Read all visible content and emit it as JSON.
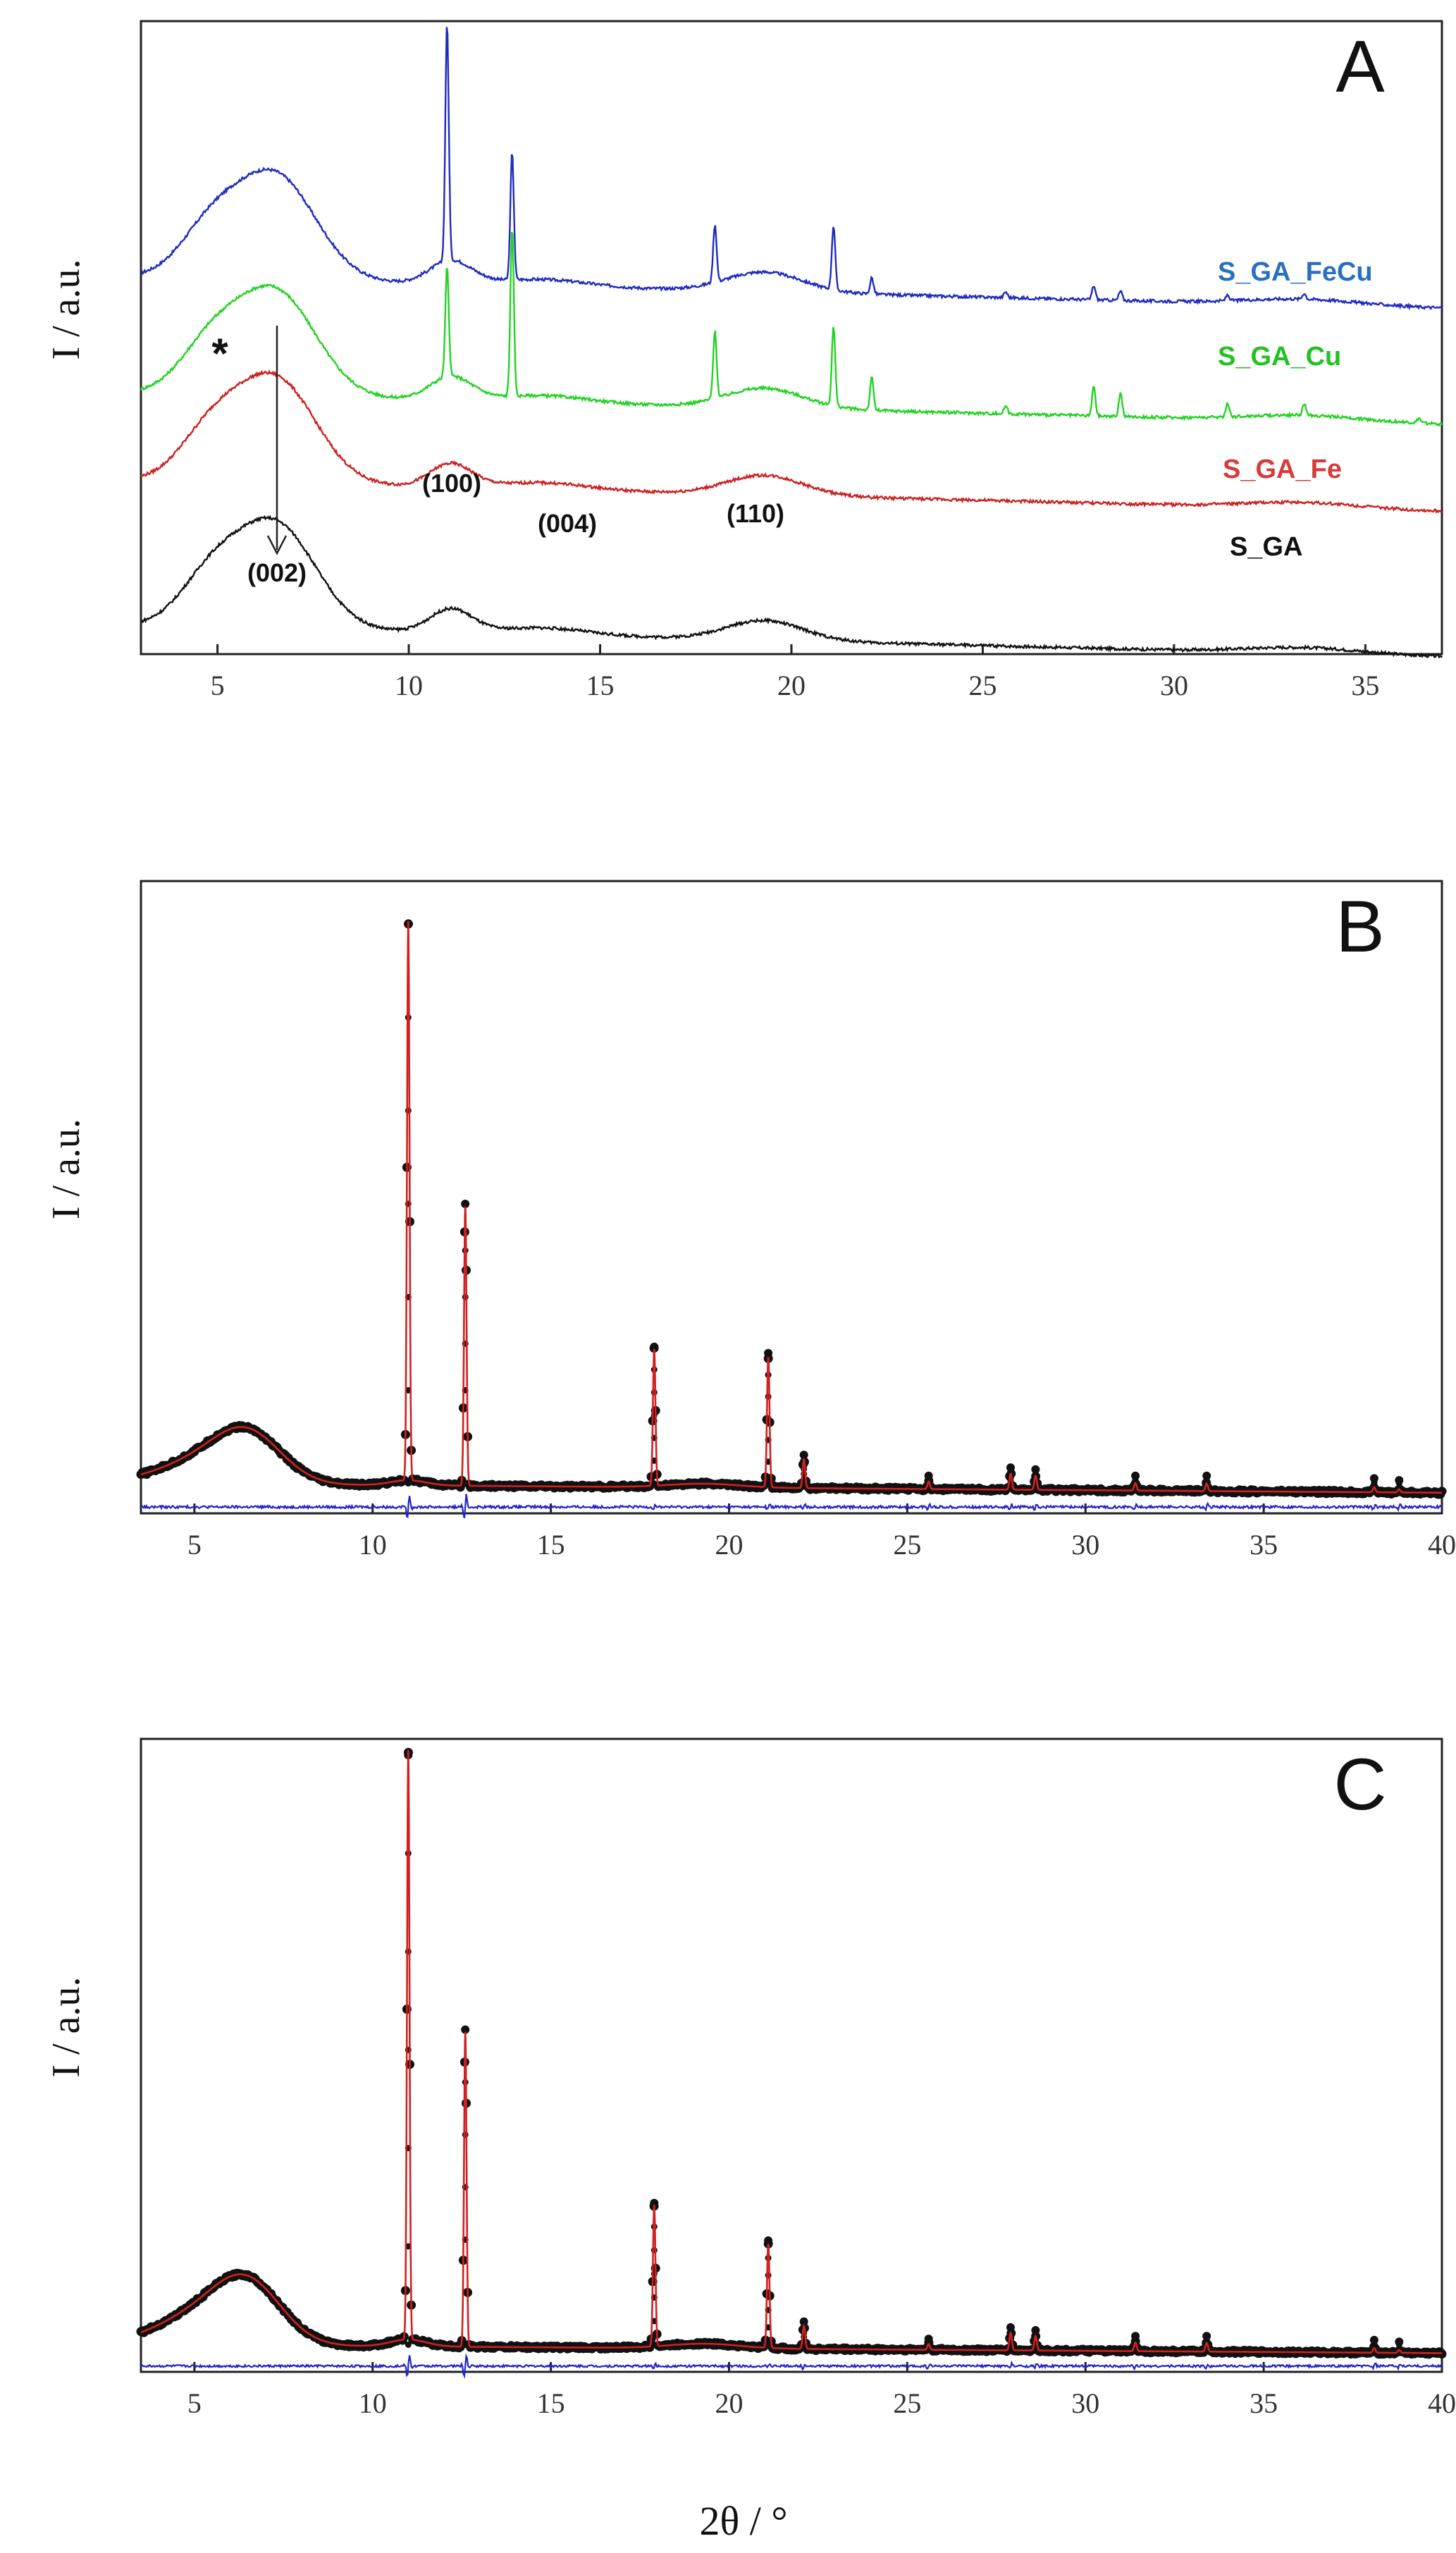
{
  "figure": {
    "xlabel": "2θ / °"
  },
  "chart_data": [
    {
      "type": "line",
      "panel_letter": "A",
      "ylabel": "I / a.u.",
      "xlim": [
        3,
        37
      ],
      "x_ticks": [
        5,
        10,
        15,
        20,
        25,
        30,
        35
      ],
      "grid": false,
      "legend": "inline labels at right",
      "series": [
        {
          "name": "S_GA_FeCu",
          "color": "#1f2bbf",
          "label_color": "#2a6fbf",
          "offset": 3.0,
          "broad": [
            [
              4.8,
              0.38,
              0.8
            ],
            [
              6.5,
              0.9,
              1.05
            ],
            [
              11.1,
              0.2,
              0.55
            ],
            [
              13.5,
              0.06,
              1.2
            ],
            [
              19.3,
              0.17,
              1.0
            ],
            [
              33.4,
              0.05,
              1.5
            ]
          ],
          "sharp": [
            [
              11.0,
              2.05
            ],
            [
              12.7,
              1.1
            ],
            [
              18.0,
              0.5
            ],
            [
              21.1,
              0.55
            ],
            [
              22.1,
              0.14
            ],
            [
              25.6,
              0.05
            ],
            [
              27.9,
              0.12
            ],
            [
              28.6,
              0.08
            ],
            [
              31.4,
              0.05
            ],
            [
              33.4,
              0.05
            ]
          ]
        },
        {
          "name": "S_GA_Cu",
          "color": "#22d322",
          "label_color": "#22c222",
          "offset": 2.0,
          "broad": [
            [
              4.8,
              0.38,
              0.8
            ],
            [
              6.5,
              0.9,
              1.05
            ],
            [
              11.1,
              0.2,
              0.55
            ],
            [
              13.5,
              0.06,
              1.2
            ],
            [
              19.3,
              0.17,
              1.0
            ],
            [
              33.4,
              0.05,
              1.5
            ]
          ],
          "sharp": [
            [
              11.0,
              0.95
            ],
            [
              12.7,
              1.45
            ],
            [
              18.0,
              0.58
            ],
            [
              21.1,
              0.68
            ],
            [
              22.1,
              0.28
            ],
            [
              25.6,
              0.07
            ],
            [
              27.9,
              0.25
            ],
            [
              28.6,
              0.2
            ],
            [
              31.4,
              0.12
            ],
            [
              33.4,
              0.1
            ],
            [
              36.4,
              0.04
            ]
          ]
        },
        {
          "name": "S_GA_Fe",
          "color": "#cc2222",
          "label_color": "#d83a3a",
          "offset": 1.25,
          "broad": [
            [
              4.8,
              0.38,
              0.8
            ],
            [
              6.5,
              0.9,
              1.05
            ],
            [
              11.1,
              0.2,
              0.55
            ],
            [
              13.5,
              0.06,
              1.2
            ],
            [
              19.3,
              0.17,
              1.0
            ],
            [
              33.4,
              0.05,
              1.5
            ]
          ],
          "sharp": []
        },
        {
          "name": "S_GA",
          "color": "#111111",
          "label_color": "#111111",
          "offset": 0.0,
          "broad": [
            [
              4.8,
              0.38,
              0.8
            ],
            [
              6.5,
              0.9,
              1.05
            ],
            [
              11.1,
              0.2,
              0.55
            ],
            [
              13.5,
              0.06,
              1.2
            ],
            [
              19.3,
              0.17,
              1.0
            ],
            [
              33.4,
              0.05,
              1.5
            ]
          ],
          "sharp": []
        }
      ],
      "annotations": [
        {
          "text": "*",
          "x": 5.0
        },
        {
          "text": "(002)",
          "x": 6.5
        },
        {
          "text": "(100)",
          "x": 11.2
        },
        {
          "text": "(004)",
          "x": 13.7
        },
        {
          "text": "(110)",
          "x": 19.3
        }
      ]
    },
    {
      "type": "scatter",
      "panel_letter": "B",
      "ylabel": "I / a.u.",
      "xlim": [
        3.5,
        40
      ],
      "x_ticks": [
        5,
        10,
        15,
        20,
        25,
        30,
        35,
        40
      ],
      "x_tick_labels": [
        "5",
        "10",
        "15",
        "20",
        "25",
        "30",
        "35",
        "40"
      ],
      "grid": false,
      "legend": "none",
      "series": [
        {
          "role": "observed",
          "marker": "dots",
          "color": "#111111"
        },
        {
          "role": "calculated",
          "color": "#d02020"
        },
        {
          "role": "difference",
          "color": "#2222cc"
        }
      ],
      "broad": [
        [
          5.0,
          0.3,
          1.2
        ],
        [
          6.5,
          0.75,
          0.95
        ],
        [
          11.0,
          0.08,
          0.5
        ],
        [
          19.3,
          0.06,
          1.0
        ]
      ],
      "sharp": [
        [
          11.0,
          8.8
        ],
        [
          12.6,
          4.4
        ],
        [
          17.9,
          2.15
        ],
        [
          21.1,
          2.05
        ],
        [
          22.1,
          0.45
        ],
        [
          25.6,
          0.12
        ],
        [
          27.9,
          0.25
        ],
        [
          28.6,
          0.22
        ],
        [
          31.4,
          0.12
        ],
        [
          33.4,
          0.12
        ],
        [
          38.1,
          0.08
        ],
        [
          38.8,
          0.05
        ]
      ]
    },
    {
      "type": "scatter",
      "panel_letter": "C",
      "ylabel": "I / a.u.",
      "xlim": [
        3.5,
        40
      ],
      "x_ticks": [
        5,
        10,
        15,
        20,
        25,
        30,
        35,
        40
      ],
      "x_tick_labels": [
        "5",
        "10",
        "15",
        "20",
        "25",
        "30",
        "35",
        "40"
      ],
      "grid": false,
      "legend": "none",
      "series": [
        {
          "role": "observed",
          "marker": "dots",
          "color": "#111111"
        },
        {
          "role": "calculated",
          "color": "#d02020"
        },
        {
          "role": "difference",
          "color": "#2222cc"
        }
      ],
      "broad": [
        [
          5.0,
          0.45,
          1.2
        ],
        [
          6.5,
          1.0,
          0.95
        ],
        [
          11.0,
          0.12,
          0.5
        ],
        [
          19.3,
          0.08,
          1.0
        ]
      ],
      "sharp": [
        [
          11.0,
          10.2
        ],
        [
          12.6,
          5.45
        ],
        [
          17.9,
          2.45
        ],
        [
          21.1,
          1.8
        ],
        [
          22.1,
          0.4
        ],
        [
          25.6,
          0.1
        ],
        [
          27.9,
          0.3
        ],
        [
          28.6,
          0.25
        ],
        [
          31.4,
          0.15
        ],
        [
          33.4,
          0.15
        ],
        [
          38.1,
          0.08
        ],
        [
          38.8,
          0.05
        ]
      ]
    }
  ]
}
